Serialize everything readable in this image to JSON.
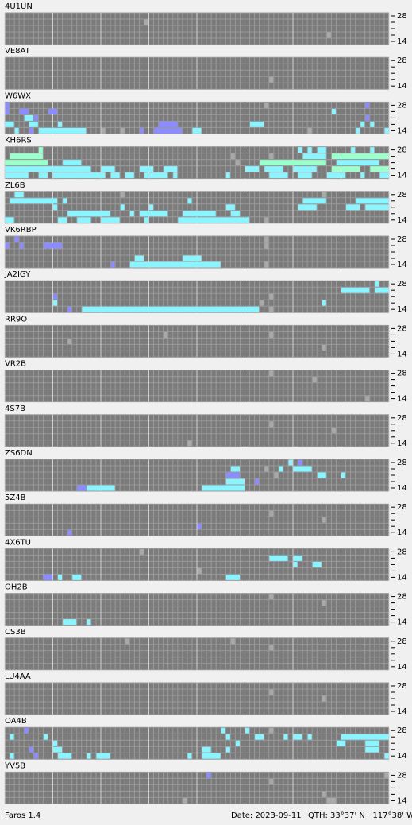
{
  "stations": [
    {
      "call": "4U1UN",
      "runs": [
        [
          1,
          29,
          29,
          1
        ],
        [
          3,
          67,
          67,
          1
        ]
      ]
    },
    {
      "call": "VE8AT",
      "runs": [
        [
          3,
          55,
          55,
          1
        ]
      ]
    },
    {
      "call": "W6WX",
      "runs": [
        [
          0,
          0,
          0,
          2
        ],
        [
          0,
          54,
          54,
          1
        ],
        [
          0,
          75,
          75,
          2
        ],
        [
          1,
          0,
          0,
          2
        ],
        [
          1,
          3,
          4,
          2
        ],
        [
          1,
          9,
          10,
          2
        ],
        [
          1,
          68,
          68,
          3
        ],
        [
          2,
          4,
          5,
          3
        ],
        [
          2,
          6,
          6,
          2
        ],
        [
          2,
          75,
          75,
          2
        ],
        [
          3,
          0,
          1,
          3
        ],
        [
          3,
          5,
          6,
          3
        ],
        [
          3,
          11,
          11,
          3
        ],
        [
          3,
          32,
          35,
          2
        ],
        [
          3,
          51,
          53,
          3
        ],
        [
          3,
          74,
          74,
          3
        ],
        [
          3,
          76,
          76,
          3
        ],
        [
          4,
          2,
          2,
          3
        ],
        [
          4,
          5,
          5,
          2
        ],
        [
          4,
          7,
          16,
          3
        ],
        [
          4,
          20,
          20,
          1
        ],
        [
          4,
          24,
          24,
          1
        ],
        [
          4,
          28,
          28,
          2
        ],
        [
          4,
          31,
          36,
          2
        ],
        [
          4,
          39,
          40,
          3
        ],
        [
          4,
          63,
          63,
          1
        ],
        [
          4,
          73,
          73,
          3
        ],
        [
          4,
          79,
          79,
          3
        ]
      ]
    },
    {
      "call": "KH6RS",
      "runs": [
        [
          0,
          7,
          7,
          4
        ],
        [
          0,
          61,
          61,
          3
        ],
        [
          0,
          63,
          63,
          3
        ],
        [
          0,
          65,
          66,
          3
        ],
        [
          0,
          72,
          72,
          3
        ],
        [
          0,
          76,
          76,
          3
        ],
        [
          1,
          1,
          7,
          4
        ],
        [
          1,
          47,
          47,
          1
        ],
        [
          1,
          55,
          55,
          1
        ],
        [
          1,
          62,
          66,
          3
        ],
        [
          1,
          68,
          79,
          4
        ],
        [
          2,
          0,
          8,
          4
        ],
        [
          2,
          12,
          15,
          3
        ],
        [
          2,
          48,
          48,
          1
        ],
        [
          2,
          53,
          66,
          4
        ],
        [
          2,
          69,
          77,
          3
        ],
        [
          3,
          0,
          17,
          3
        ],
        [
          3,
          20,
          22,
          3
        ],
        [
          3,
          28,
          30,
          3
        ],
        [
          3,
          33,
          35,
          3
        ],
        [
          3,
          50,
          52,
          3
        ],
        [
          3,
          54,
          57,
          3
        ],
        [
          3,
          60,
          64,
          3
        ],
        [
          3,
          68,
          73,
          4
        ],
        [
          3,
          76,
          79,
          4
        ],
        [
          4,
          0,
          4,
          3
        ],
        [
          4,
          7,
          8,
          3
        ],
        [
          4,
          10,
          20,
          3
        ],
        [
          4,
          22,
          23,
          3
        ],
        [
          4,
          25,
          26,
          3
        ],
        [
          4,
          29,
          33,
          3
        ],
        [
          4,
          35,
          35,
          3
        ],
        [
          4,
          46,
          46,
          3
        ],
        [
          4,
          55,
          58,
          3
        ],
        [
          4,
          61,
          63,
          3
        ],
        [
          4,
          67,
          70,
          3
        ],
        [
          4,
          74,
          74,
          3
        ],
        [
          4,
          78,
          79,
          3
        ]
      ]
    },
    {
      "call": "ZL6B",
      "runs": [
        [
          0,
          2,
          3,
          3
        ],
        [
          0,
          24,
          24,
          1
        ],
        [
          0,
          66,
          66,
          1
        ],
        [
          1,
          1,
          10,
          3
        ],
        [
          1,
          12,
          12,
          3
        ],
        [
          1,
          38,
          38,
          3
        ],
        [
          1,
          62,
          66,
          3
        ],
        [
          1,
          73,
          79,
          3
        ],
        [
          2,
          10,
          10,
          3
        ],
        [
          2,
          24,
          24,
          3
        ],
        [
          2,
          30,
          30,
          3
        ],
        [
          2,
          46,
          47,
          3
        ],
        [
          2,
          61,
          64,
          3
        ],
        [
          2,
          71,
          73,
          3
        ],
        [
          2,
          75,
          79,
          3
        ],
        [
          3,
          13,
          21,
          3
        ],
        [
          3,
          26,
          26,
          3
        ],
        [
          3,
          28,
          33,
          3
        ],
        [
          3,
          37,
          43,
          3
        ],
        [
          3,
          47,
          48,
          3
        ],
        [
          4,
          0,
          1,
          3
        ],
        [
          4,
          11,
          12,
          3
        ],
        [
          4,
          15,
          17,
          3
        ],
        [
          4,
          20,
          23,
          3
        ],
        [
          4,
          29,
          29,
          3
        ],
        [
          4,
          36,
          50,
          3
        ],
        [
          4,
          54,
          54,
          1
        ]
      ]
    },
    {
      "call": "VK6RBP",
      "runs": [
        [
          0,
          2,
          2,
          2
        ],
        [
          0,
          54,
          54,
          1
        ],
        [
          1,
          0,
          0,
          2
        ],
        [
          1,
          3,
          3,
          2
        ],
        [
          1,
          8,
          11,
          2
        ],
        [
          1,
          54,
          54,
          1
        ],
        [
          3,
          27,
          28,
          3
        ],
        [
          3,
          37,
          40,
          3
        ],
        [
          4,
          22,
          22,
          2
        ],
        [
          4,
          26,
          44,
          3
        ],
        [
          4,
          54,
          54,
          1
        ]
      ]
    },
    {
      "call": "JA2IGY",
      "runs": [
        [
          0,
          77,
          77,
          3
        ],
        [
          1,
          70,
          75,
          3
        ],
        [
          1,
          77,
          79,
          3
        ],
        [
          2,
          10,
          10,
          2
        ],
        [
          2,
          55,
          55,
          1
        ],
        [
          3,
          10,
          10,
          3
        ],
        [
          3,
          53,
          53,
          1
        ],
        [
          3,
          66,
          66,
          3
        ],
        [
          4,
          13,
          13,
          2
        ],
        [
          4,
          16,
          52,
          3
        ],
        [
          4,
          55,
          55,
          1
        ]
      ]
    },
    {
      "call": "RR9O",
      "runs": [
        [
          1,
          33,
          33,
          1
        ],
        [
          2,
          13,
          13,
          1
        ],
        [
          1,
          55,
          55,
          1
        ],
        [
          3,
          66,
          66,
          1
        ]
      ]
    },
    {
      "call": "VR2B",
      "runs": [
        [
          0,
          55,
          55,
          1
        ],
        [
          1,
          64,
          64,
          1
        ],
        [
          4,
          75,
          75,
          1
        ]
      ]
    },
    {
      "call": "4S7B",
      "runs": [
        [
          1,
          55,
          55,
          1
        ],
        [
          2,
          68,
          68,
          1
        ],
        [
          4,
          38,
          38,
          1
        ]
      ]
    },
    {
      "call": "ZS6DN",
      "runs": [
        [
          0,
          59,
          59,
          3
        ],
        [
          0,
          61,
          61,
          2
        ],
        [
          1,
          47,
          48,
          3
        ],
        [
          1,
          54,
          54,
          1
        ],
        [
          1,
          57,
          57,
          3
        ],
        [
          1,
          60,
          63,
          3
        ],
        [
          2,
          46,
          48,
          2
        ],
        [
          2,
          56,
          56,
          1
        ],
        [
          2,
          65,
          66,
          3
        ],
        [
          2,
          70,
          70,
          3
        ],
        [
          3,
          46,
          49,
          3
        ],
        [
          3,
          52,
          52,
          2
        ],
        [
          4,
          15,
          16,
          2
        ],
        [
          4,
          17,
          22,
          3
        ],
        [
          4,
          41,
          49,
          3
        ]
      ]
    },
    {
      "call": "5Z4B",
      "runs": [
        [
          1,
          55,
          55,
          1
        ],
        [
          2,
          66,
          66,
          1
        ],
        [
          3,
          40,
          40,
          2
        ],
        [
          4,
          13,
          13,
          2
        ]
      ]
    },
    {
      "call": "4X6TU",
      "runs": [
        [
          0,
          28,
          28,
          1
        ],
        [
          1,
          55,
          58,
          3
        ],
        [
          1,
          60,
          61,
          3
        ],
        [
          2,
          60,
          60,
          3
        ],
        [
          2,
          64,
          65,
          3
        ],
        [
          3,
          40,
          40,
          1
        ],
        [
          4,
          8,
          9,
          2
        ],
        [
          4,
          11,
          11,
          3
        ],
        [
          4,
          14,
          15,
          3
        ],
        [
          4,
          46,
          48,
          3
        ]
      ]
    },
    {
      "call": "OH2B",
      "runs": [
        [
          0,
          55,
          55,
          1
        ],
        [
          1,
          66,
          66,
          1
        ],
        [
          4,
          12,
          14,
          3
        ],
        [
          4,
          17,
          17,
          3
        ]
      ]
    },
    {
      "call": "CS3B",
      "runs": [
        [
          0,
          25,
          25,
          1
        ],
        [
          0,
          47,
          47,
          1
        ],
        [
          1,
          55,
          55,
          1
        ]
      ]
    },
    {
      "call": "LU4AA",
      "runs": [
        [
          1,
          55,
          55,
          1
        ],
        [
          2,
          66,
          66,
          1
        ]
      ]
    },
    {
      "call": "OA4B",
      "runs": [
        [
          0,
          4,
          4,
          2
        ],
        [
          0,
          45,
          45,
          3
        ],
        [
          0,
          50,
          50,
          3
        ],
        [
          0,
          55,
          55,
          1
        ],
        [
          1,
          1,
          1,
          3
        ],
        [
          1,
          8,
          8,
          3
        ],
        [
          1,
          46,
          46,
          3
        ],
        [
          1,
          52,
          53,
          3
        ],
        [
          1,
          58,
          58,
          3
        ],
        [
          1,
          60,
          61,
          3
        ],
        [
          1,
          63,
          63,
          3
        ],
        [
          1,
          70,
          79,
          3
        ],
        [
          2,
          10,
          10,
          3
        ],
        [
          2,
          48,
          48,
          3
        ],
        [
          2,
          69,
          70,
          3
        ],
        [
          2,
          75,
          77,
          3
        ],
        [
          3,
          5,
          5,
          2
        ],
        [
          3,
          10,
          11,
          3
        ],
        [
          3,
          41,
          42,
          3
        ],
        [
          3,
          46,
          46,
          3
        ],
        [
          3,
          75,
          77,
          3
        ],
        [
          4,
          1,
          1,
          3
        ],
        [
          4,
          6,
          6,
          2
        ],
        [
          4,
          11,
          13,
          3
        ],
        [
          4,
          17,
          17,
          3
        ],
        [
          4,
          19,
          21,
          3
        ],
        [
          4,
          38,
          38,
          3
        ],
        [
          4,
          41,
          44,
          3
        ],
        [
          4,
          79,
          79,
          3
        ]
      ]
    },
    {
      "call": "YV5B",
      "runs": [
        [
          0,
          42,
          42,
          2
        ],
        [
          0,
          79,
          79,
          1
        ],
        [
          1,
          55,
          55,
          1
        ],
        [
          3,
          66,
          66,
          1
        ],
        [
          4,
          37,
          37,
          1
        ],
        [
          4,
          67,
          68,
          1
        ]
      ]
    }
  ],
  "bands": {
    "top": "28",
    "bottom": "14"
  },
  "columns": 80,
  "rows": 5,
  "palette": {
    "1": "#a9a9a9",
    "2": "#8c8cff",
    "3": "#8cf4ff",
    "4": "#9cffcc"
  },
  "footer": {
    "app": "Faros 1.4",
    "date": "Date: 2023-09-11",
    "qth": "QTH: 33°37' N   117°38' W"
  }
}
